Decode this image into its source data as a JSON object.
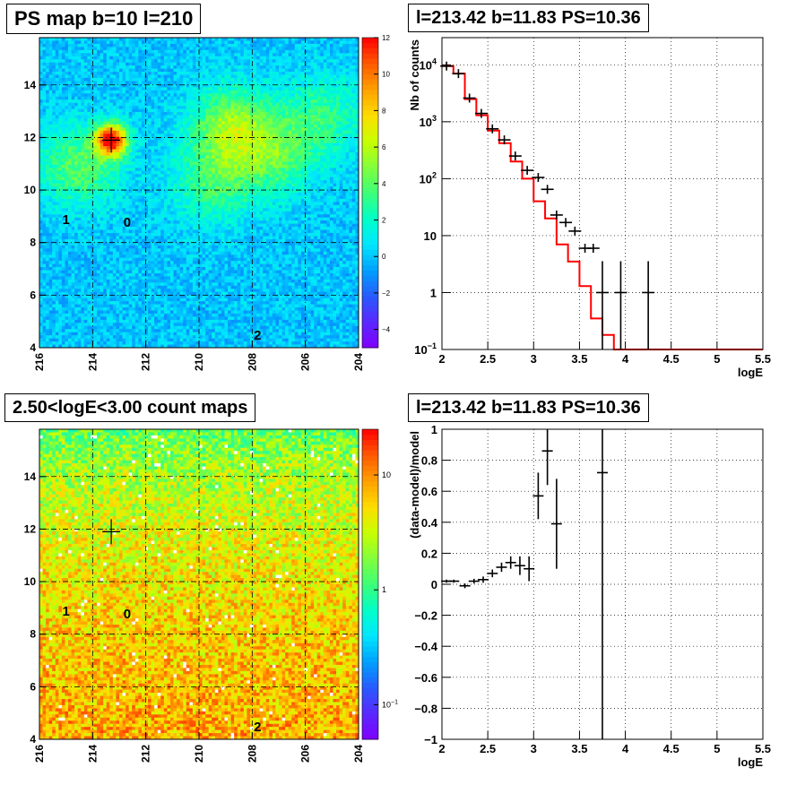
{
  "colors": {
    "model_line": "#ff0000",
    "data_marks": "#000000",
    "grid": "#000000"
  },
  "chart_data": [
    {
      "type": "heatmap",
      "title": "PS map b=10 l=210",
      "xlim": [
        216,
        204
      ],
      "ylim": [
        4,
        15.8
      ],
      "xticks": [
        "216",
        "214",
        "212",
        "210",
        "208",
        "206",
        "204"
      ],
      "yticks": [
        "4",
        "6",
        "8",
        "10",
        "12",
        "14"
      ],
      "colorbar": {
        "min": -5,
        "max": 12,
        "ticks": [
          "12",
          "10",
          "8",
          "6",
          "4",
          "2",
          "0",
          "−2",
          "−4"
        ],
        "scale": "linear"
      },
      "background_level": 0,
      "hotspots": [
        {
          "l": 213.3,
          "b": 11.9,
          "value": 12
        },
        {
          "l": 208.8,
          "b": 12.4,
          "value": 5
        },
        {
          "l": 214.5,
          "b": 10.9,
          "value": 4
        },
        {
          "l": 207.2,
          "b": 11.3,
          "value": 3.5
        },
        {
          "l": 209.5,
          "b": 10.2,
          "value": 3
        },
        {
          "l": 205.3,
          "b": 12.8,
          "value": 3
        }
      ],
      "markers": [
        {
          "l": 213.3,
          "b": 11.9
        }
      ],
      "labels": [
        {
          "text": "1",
          "l": 215.0,
          "b": 8.7
        },
        {
          "text": "0",
          "l": 212.7,
          "b": 8.6
        },
        {
          "text": "2",
          "l": 207.8,
          "b": 4.3
        }
      ],
      "grid": true
    },
    {
      "type": "line",
      "title": "l=213.42 b=11.83 PS=10.36",
      "xlabel": "logE",
      "ylabel": "Nb of counts",
      "xlim": [
        2,
        5.5
      ],
      "ylim": [
        0.1,
        30000
      ],
      "yscale": "log",
      "xticks": [
        "2",
        "2.5",
        "3",
        "3.5",
        "4",
        "4.5",
        "5",
        "5.5"
      ],
      "yticks": [
        {
          "value": 0.1,
          "base": "10",
          "exp": "−1"
        },
        {
          "value": 1,
          "base": "1",
          "exp": ""
        },
        {
          "value": 10,
          "base": "10",
          "exp": ""
        },
        {
          "value": 100,
          "base": "10",
          "exp": "2"
        },
        {
          "value": 1000,
          "base": "10",
          "exp": "3"
        },
        {
          "value": 10000,
          "base": "10",
          "exp": "4"
        }
      ],
      "model_edges": [
        2.0,
        2.125,
        2.25,
        2.375,
        2.5,
        2.625,
        2.75,
        2.875,
        3.0,
        3.125,
        3.25,
        3.375,
        3.5,
        3.625,
        3.75,
        3.875,
        4.0,
        5.5
      ],
      "model_values": [
        9500,
        7000,
        2500,
        1300,
        700,
        420,
        200,
        100,
        40,
        20,
        7,
        3.5,
        1.3,
        0.35,
        0.18,
        0.1,
        0.1
      ],
      "data_points": [
        {
          "x": 2.05,
          "y": 9500,
          "yerr_lo": 0,
          "yerr_hi": 0
        },
        {
          "x": 2.18,
          "y": 7000,
          "yerr_lo": 0,
          "yerr_hi": 0
        },
        {
          "x": 2.3,
          "y": 2600,
          "yerr_lo": 0,
          "yerr_hi": 0
        },
        {
          "x": 2.43,
          "y": 1400,
          "yerr_lo": 0,
          "yerr_hi": 0
        },
        {
          "x": 2.55,
          "y": 750,
          "yerr_lo": 0,
          "yerr_hi": 0
        },
        {
          "x": 2.68,
          "y": 480,
          "yerr_lo": 0,
          "yerr_hi": 0
        },
        {
          "x": 2.8,
          "y": 250,
          "yerr_lo": 0,
          "yerr_hi": 0
        },
        {
          "x": 2.93,
          "y": 140,
          "yerr_lo": 0,
          "yerr_hi": 0
        },
        {
          "x": 3.05,
          "y": 105,
          "yerr_lo": 0,
          "yerr_hi": 0
        },
        {
          "x": 3.15,
          "y": 65,
          "yerr_lo": 0,
          "yerr_hi": 0
        },
        {
          "x": 3.25,
          "y": 23,
          "yerr_lo": 0,
          "yerr_hi": 0
        },
        {
          "x": 3.35,
          "y": 17,
          "yerr_lo": 0,
          "yerr_hi": 0
        },
        {
          "x": 3.45,
          "y": 12,
          "yerr_lo": 0,
          "yerr_hi": 0
        },
        {
          "x": 3.56,
          "y": 6,
          "yerr_lo": 0,
          "yerr_hi": 0
        },
        {
          "x": 3.65,
          "y": 6,
          "yerr_lo": 0,
          "yerr_hi": 0
        },
        {
          "x": 3.75,
          "y": 1,
          "yerr_lo": 0.9,
          "yerr_hi": 0.9
        },
        {
          "x": 3.95,
          "y": 1,
          "yerr_lo": 0.9,
          "yerr_hi": 0.9
        },
        {
          "x": 4.25,
          "y": 1,
          "yerr_lo": 0.9,
          "yerr_hi": 0.9
        }
      ],
      "grid": true
    },
    {
      "type": "heatmap",
      "title": "2.50<logE<3.00 count maps",
      "xlim": [
        216,
        204
      ],
      "ylim": [
        4,
        15.8
      ],
      "xticks": [
        "216",
        "214",
        "212",
        "210",
        "208",
        "206",
        "204"
      ],
      "yticks": [
        "4",
        "6",
        "8",
        "10",
        "12",
        "14"
      ],
      "colorbar": {
        "min": 0.05,
        "max": 25,
        "scale": "log",
        "ticks": [
          {
            "base": "10",
            "exp": ""
          },
          {
            "base": "1",
            "exp": ""
          },
          {
            "base": "10",
            "exp": "−1"
          }
        ]
      },
      "gradient": {
        "bottom_level": 8,
        "top_level": 1.5
      },
      "markers": [
        {
          "l": 213.3,
          "b": 11.9
        }
      ],
      "labels": [
        {
          "text": "1",
          "l": 215.0,
          "b": 8.7
        },
        {
          "text": "0",
          "l": 212.7,
          "b": 8.6
        },
        {
          "text": "2",
          "l": 207.8,
          "b": 4.3
        }
      ],
      "grid": true
    },
    {
      "type": "scatter",
      "title": "l=213.42 b=11.83 PS=10.36",
      "xlabel": "logE",
      "ylabel": "(data-model)/model",
      "xlim": [
        2,
        5.5
      ],
      "ylim": [
        -1,
        1
      ],
      "xticks": [
        "2",
        "2.5",
        "3",
        "3.5",
        "4",
        "4.5",
        "5",
        "5.5"
      ],
      "yticks": [
        "−1",
        "−0.8",
        "−0.6",
        "−0.4",
        "−0.2",
        "0",
        "0.2",
        "0.4",
        "0.6",
        "0.8",
        "1"
      ],
      "points": [
        {
          "x": 2.05,
          "y": 0.02,
          "err": 0.01
        },
        {
          "x": 2.13,
          "y": 0.02,
          "err": 0.01
        },
        {
          "x": 2.25,
          "y": -0.01,
          "err": 0.015
        },
        {
          "x": 2.35,
          "y": 0.02,
          "err": 0.015
        },
        {
          "x": 2.45,
          "y": 0.03,
          "err": 0.02
        },
        {
          "x": 2.55,
          "y": 0.07,
          "err": 0.025
        },
        {
          "x": 2.65,
          "y": 0.11,
          "err": 0.03
        },
        {
          "x": 2.75,
          "y": 0.14,
          "err": 0.04
        },
        {
          "x": 2.85,
          "y": 0.12,
          "err": 0.06
        },
        {
          "x": 2.95,
          "y": 0.1,
          "err": 0.08
        },
        {
          "x": 3.05,
          "y": 0.57,
          "err": 0.15
        },
        {
          "x": 3.15,
          "y": 0.86,
          "err": 0.22
        },
        {
          "x": 3.25,
          "y": 0.39,
          "err": 0.29
        },
        {
          "x": 3.75,
          "y": 0.72,
          "err": 1.8
        }
      ],
      "grid": true
    }
  ]
}
